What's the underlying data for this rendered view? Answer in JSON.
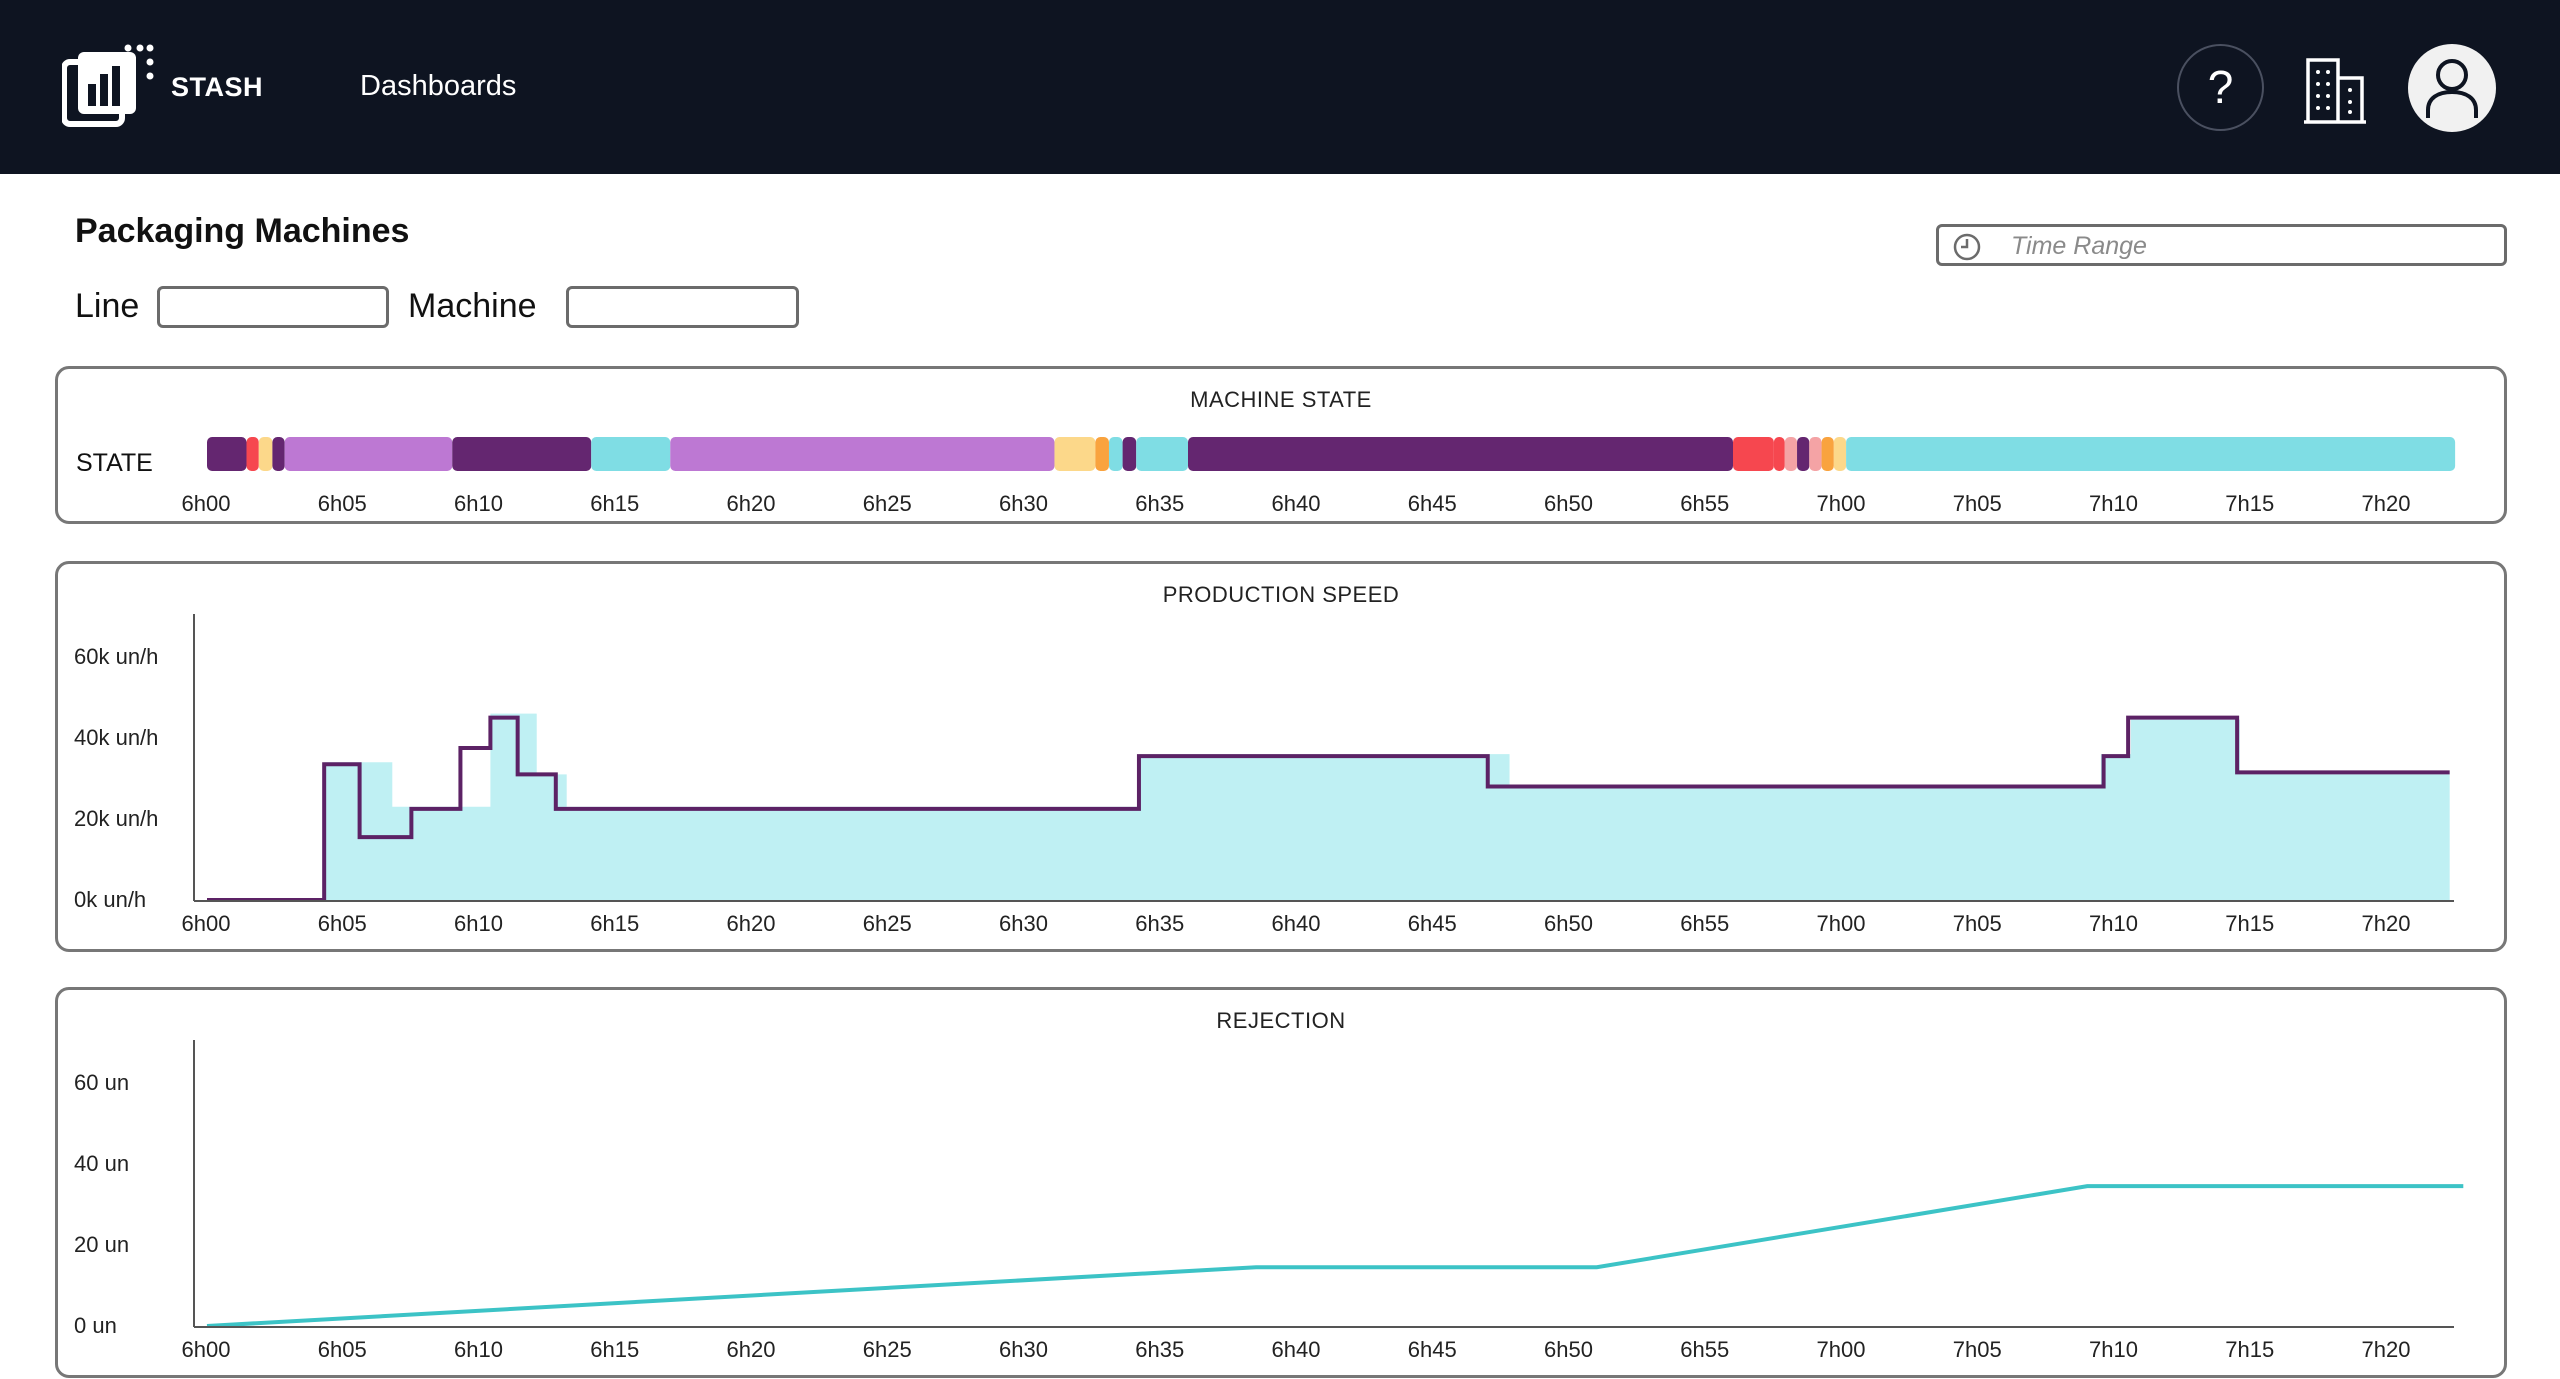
{
  "app": {
    "brand": "STASH",
    "nav_dashboards": "Dashboards"
  },
  "icons": {
    "logo": "stash-logo-icon",
    "help": "question-icon",
    "building": "building-icon",
    "user": "user-icon",
    "clock": "clock-icon"
  },
  "header": {
    "help_glyph": "?"
  },
  "page": {
    "title": "Packaging Machines",
    "line_label": "Line",
    "line_value": "",
    "machine_label": "Machine",
    "machine_value": "",
    "time_range_placeholder": "Time Range"
  },
  "x_ticks": [
    "6h00",
    "6h05",
    "6h10",
    "6h15",
    "6h20",
    "6h25",
    "6h30",
    "6h35",
    "6h40",
    "6h45",
    "6h50",
    "6h55",
    "7h00",
    "7h05",
    "7h10",
    "7h15",
    "7h20"
  ],
  "machine_state": {
    "title": "MACHINE STATE",
    "row_label": "STATE",
    "colors": {
      "dark_purple": "#642670",
      "red": "#f6474f",
      "orange": "#f9a33e",
      "light_yellow": "#fcd88a",
      "lavender": "#bd78d3",
      "cyan": "#7fdde4",
      "pink": "#f4a3a5"
    },
    "segments": [
      {
        "start": 0.0,
        "end": 1.45,
        "color": "dark_purple"
      },
      {
        "start": 1.45,
        "end": 1.9,
        "color": "red"
      },
      {
        "start": 1.9,
        "end": 2.4,
        "color": "light_yellow"
      },
      {
        "start": 2.4,
        "end": 2.85,
        "color": "dark_purple"
      },
      {
        "start": 2.85,
        "end": 9.0,
        "color": "lavender"
      },
      {
        "start": 9.0,
        "end": 14.1,
        "color": "dark_purple"
      },
      {
        "start": 14.1,
        "end": 17.0,
        "color": "cyan"
      },
      {
        "start": 17.0,
        "end": 31.1,
        "color": "lavender"
      },
      {
        "start": 31.1,
        "end": 32.6,
        "color": "light_yellow"
      },
      {
        "start": 32.6,
        "end": 33.1,
        "color": "orange"
      },
      {
        "start": 33.1,
        "end": 33.6,
        "color": "cyan"
      },
      {
        "start": 33.6,
        "end": 34.1,
        "color": "dark_purple"
      },
      {
        "start": 34.1,
        "end": 36.0,
        "color": "cyan"
      },
      {
        "start": 36.0,
        "end": 56.0,
        "color": "dark_purple"
      },
      {
        "start": 56.0,
        "end": 57.5,
        "color": "red"
      },
      {
        "start": 57.5,
        "end": 57.9,
        "color": "red"
      },
      {
        "start": 57.9,
        "end": 58.35,
        "color": "pink"
      },
      {
        "start": 58.35,
        "end": 58.8,
        "color": "dark_purple"
      },
      {
        "start": 58.8,
        "end": 59.25,
        "color": "pink"
      },
      {
        "start": 59.25,
        "end": 59.7,
        "color": "orange"
      },
      {
        "start": 59.7,
        "end": 60.15,
        "color": "light_yellow"
      },
      {
        "start": 60.15,
        "end": 82.5,
        "color": "cyan"
      }
    ]
  },
  "chart_data": [
    {
      "type": "area",
      "title": "PRODUCTION SPEED",
      "y_ticks": [
        "0k un/h",
        "20k un/h",
        "40k un/h",
        "60k un/h"
      ],
      "ylim": [
        0,
        60000
      ],
      "x_unit": "minutes after 6h00",
      "xlim": [
        0,
        83
      ],
      "series": [
        {
          "style": "fill",
          "color": "#bff0f3",
          "points": [
            [
              0,
              0
            ],
            [
              4.3,
              0
            ],
            [
              4.3,
              34000
            ],
            [
              6.8,
              34000
            ],
            [
              6.8,
              23000
            ],
            [
              10.4,
              23000
            ],
            [
              10.4,
              46000
            ],
            [
              12.1,
              46000
            ],
            [
              12.1,
              31000
            ],
            [
              13.2,
              31000
            ],
            [
              13.2,
              23000
            ],
            [
              34.2,
              23000
            ],
            [
              34.2,
              36000
            ],
            [
              47.8,
              36000
            ],
            [
              47.8,
              35000
            ],
            [
              47.8,
              28000
            ],
            [
              69.5,
              28000
            ],
            [
              69.5,
              36000
            ],
            [
              70.6,
              36000
            ],
            [
              70.6,
              44500
            ],
            [
              74.6,
              44500
            ],
            [
              74.6,
              31000
            ],
            [
              82.3,
              31000
            ],
            [
              82.3,
              0
            ]
          ]
        },
        {
          "style": "line",
          "color": "#5c2265",
          "points": [
            [
              0,
              0
            ],
            [
              4.3,
              0
            ],
            [
              4.3,
              33500
            ],
            [
              5.6,
              33500
            ],
            [
              5.6,
              15500
            ],
            [
              7.5,
              15500
            ],
            [
              7.5,
              22500
            ],
            [
              9.3,
              22500
            ],
            [
              9.3,
              37500
            ],
            [
              10.4,
              37500
            ],
            [
              10.4,
              45000
            ],
            [
              11.4,
              45000
            ],
            [
              11.4,
              31000
            ],
            [
              12.8,
              31000
            ],
            [
              12.8,
              22500
            ],
            [
              34.2,
              22500
            ],
            [
              34.2,
              35500
            ],
            [
              47.0,
              35500
            ],
            [
              47.0,
              28000
            ],
            [
              69.6,
              28000
            ],
            [
              69.6,
              35500
            ],
            [
              70.5,
              35500
            ],
            [
              70.5,
              45000
            ],
            [
              74.5,
              45000
            ],
            [
              74.5,
              31500
            ],
            [
              82.3,
              31500
            ]
          ]
        }
      ]
    },
    {
      "type": "line",
      "title": "REJECTION",
      "y_ticks": [
        "0 un",
        "20 un",
        "40 un",
        "60 un"
      ],
      "ylim": [
        0,
        60
      ],
      "x_unit": "minutes after 6h00",
      "xlim": [
        0,
        83
      ],
      "series": [
        {
          "color": "#3cc3c6",
          "points": [
            [
              0,
              0
            ],
            [
              38.5,
              14.5
            ],
            [
              51.0,
              14.5
            ],
            [
              69.0,
              34.5
            ],
            [
              82.8,
              34.5
            ]
          ]
        }
      ]
    }
  ]
}
